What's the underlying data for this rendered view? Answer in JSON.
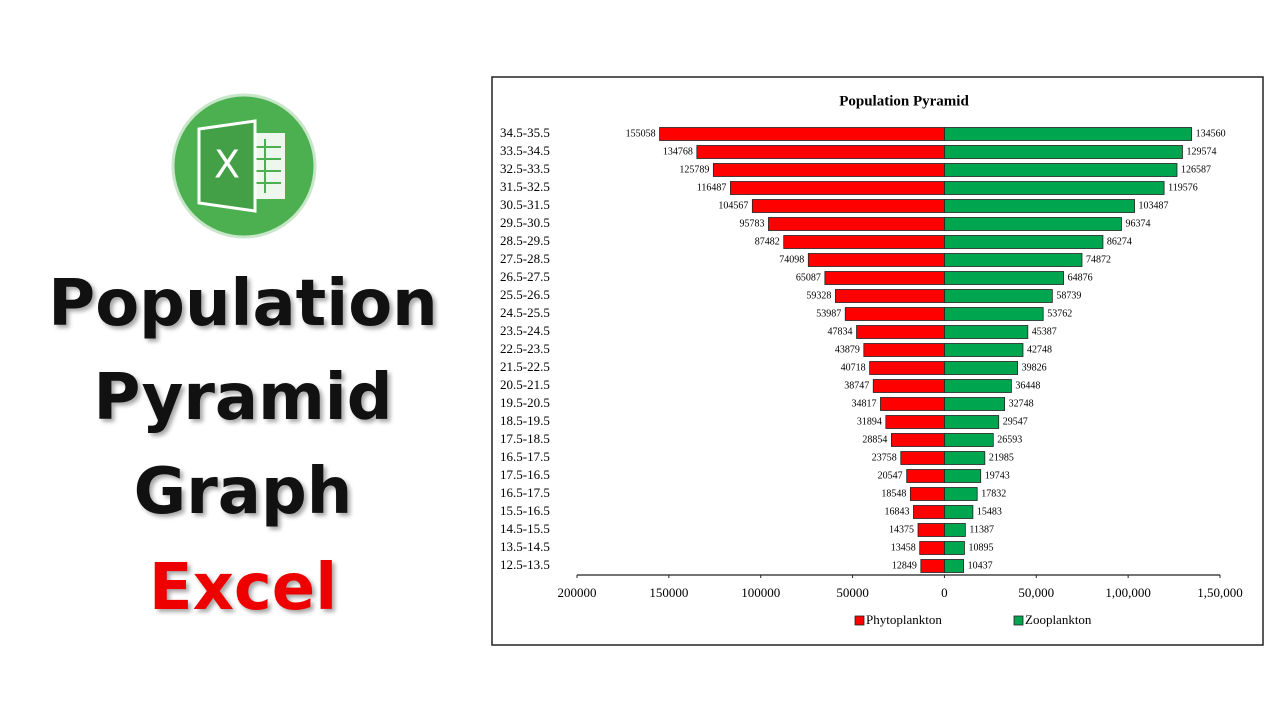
{
  "heading": [
    "Population",
    "Pyramid",
    "Graph",
    "Excel"
  ],
  "chart_data": {
    "type": "pyramid",
    "title": "Population Pyramid",
    "categories": [
      "34.5-35.5",
      "33.5-34.5",
      "32.5-33.5",
      "31.5-32.5",
      "30.5-31.5",
      "29.5-30.5",
      "28.5-29.5",
      "27.5-28.5",
      "26.5-27.5",
      "25.5-26.5",
      "24.5-25.5",
      "23.5-24.5",
      "22.5-23.5",
      "21.5-22.5",
      "20.5-21.5",
      "19.5-20.5",
      "18.5-19.5",
      "17.5-18.5",
      "16.5-17.5",
      "17.5-16.5",
      "16.5-17.5",
      "15.5-16.5",
      "14.5-15.5",
      "13.5-14.5",
      "12.5-13.5"
    ],
    "series": [
      {
        "name": "Phytoplankton",
        "color": "#ff0000",
        "side": "left",
        "values": [
          155058,
          134768,
          125789,
          116487,
          104567,
          95783,
          87482,
          74098,
          65087,
          59328,
          53987,
          47834,
          43879,
          40718,
          38747,
          34817,
          31894,
          28854,
          23758,
          20547,
          18548,
          16843,
          14375,
          13458,
          12849
        ]
      },
      {
        "name": "Zooplankton",
        "color": "#00a550",
        "side": "right",
        "values": [
          134560,
          129574,
          126587,
          119576,
          103487,
          96374,
          86274,
          74872,
          64876,
          58739,
          53762,
          45387,
          42748,
          39826,
          36448,
          32748,
          29547,
          26593,
          21985,
          19743,
          17832,
          15483,
          11387,
          10895,
          10437
        ]
      }
    ],
    "xlim": [
      -200000,
      150000
    ],
    "xticks": [
      {
        "value": -200000,
        "label": "200000"
      },
      {
        "value": -150000,
        "label": "150000"
      },
      {
        "value": -100000,
        "label": "100000"
      },
      {
        "value": -50000,
        "label": "50000"
      },
      0,
      {
        "value": 50000,
        "label": "50,000"
      },
      {
        "value": 100000,
        "label": "1,00,000"
      },
      {
        "value": 150000,
        "label": "1,50,000"
      }
    ],
    "legend": "bottom"
  }
}
